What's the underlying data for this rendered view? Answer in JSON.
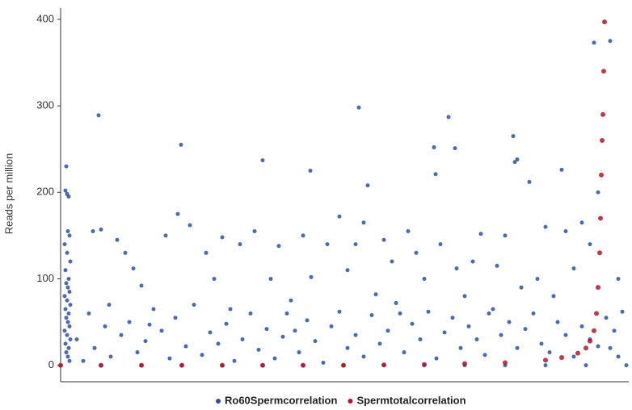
{
  "chart_data": {
    "type": "scatter",
    "y_label": "Reads per million",
    "xlim": [
      0,
      703
    ],
    "ylim": [
      -19,
      413
    ],
    "yticks": [
      0,
      100,
      200,
      300,
      400
    ],
    "grid": false,
    "legend": "bottom",
    "series": [
      {
        "name": "Ro60Spermcorrelation",
        "color": "#2f4f9e",
        "x": [
          6,
          8,
          10,
          7,
          9,
          11,
          5,
          8,
          12,
          6,
          10,
          7,
          9,
          11,
          5,
          8,
          12,
          6,
          10,
          7,
          9,
          11,
          5,
          8,
          12,
          6,
          10,
          7,
          9,
          11,
          47,
          149,
          250,
          309,
          369,
          380,
          480,
          462,
          464,
          488,
          560,
          562,
          565,
          580,
          620,
          660,
          680,
          40,
          50,
          60,
          70,
          80,
          90,
          100,
          110,
          130,
          145,
          160,
          180,
          190,
          200,
          210,
          222,
          240,
          260,
          270,
          280,
          290,
          300,
          310,
          330,
          345,
          355,
          365,
          375,
          390,
          400,
          410,
          420,
          430,
          440,
          450,
          470,
          490,
          500,
          510,
          520,
          530,
          540,
          550,
          570,
          590,
          600,
          610,
          625,
          635,
          645,
          655,
          665,
          690,
          695,
          20,
          28,
          35,
          42,
          55,
          62,
          75,
          85,
          95,
          105,
          115,
          125,
          135,
          142,
          155,
          165,
          175,
          185,
          195,
          205,
          215,
          225,
          235,
          245,
          255,
          265,
          275,
          285,
          295,
          305,
          315,
          325,
          335,
          345,
          355,
          365,
          375,
          385,
          395,
          405,
          415,
          425,
          435,
          445,
          455,
          465,
          475,
          485,
          495,
          505,
          515,
          525,
          535,
          545,
          555,
          565,
          575,
          585,
          595,
          605,
          615,
          625,
          635,
          645,
          655,
          665,
          675,
          680,
          685,
          690,
          0,
          50,
          100,
          150,
          200,
          250,
          300,
          350,
          400,
          450,
          500,
          550,
          600,
          650,
          700
        ],
        "values": [
          202,
          198,
          195,
          230,
          155,
          150,
          140,
          130,
          120,
          110,
          100,
          95,
          90,
          85,
          80,
          75,
          70,
          65,
          60,
          55,
          50,
          45,
          40,
          35,
          30,
          25,
          20,
          15,
          10,
          5,
          289,
          255,
          237,
          225,
          298,
          208,
          287,
          252,
          221,
          251,
          265,
          235,
          238,
          212,
          226,
          373,
          375,
          155,
          157,
          70,
          145,
          130,
          112,
          92,
          47,
          150,
          175,
          162,
          130,
          100,
          148,
          65,
          140,
          155,
          100,
          138,
          60,
          40,
          150,
          102,
          140,
          172,
          110,
          140,
          165,
          82,
          145,
          120,
          60,
          155,
          130,
          100,
          140,
          112,
          80,
          120,
          152,
          60,
          115,
          150,
          90,
          100,
          160,
          80,
          155,
          112,
          165,
          140,
          200,
          100,
          62,
          30,
          5,
          60,
          20,
          45,
          10,
          35,
          50,
          15,
          28,
          65,
          40,
          8,
          55,
          22,
          70,
          12,
          38,
          25,
          48,
          5,
          30,
          60,
          18,
          42,
          8,
          33,
          75,
          15,
          52,
          28,
          3,
          45,
          62,
          20,
          35,
          10,
          58,
          25,
          40,
          72,
          15,
          48,
          30,
          62,
          8,
          38,
          55,
          20,
          45,
          30,
          12,
          65,
          35,
          50,
          20,
          42,
          60,
          25,
          15,
          50,
          35,
          10,
          45,
          30,
          22,
          55,
          20,
          40,
          10,
          0,
          0,
          0,
          0,
          0,
          0,
          0,
          0,
          0,
          0,
          0,
          0,
          0,
          0,
          0
        ]
      },
      {
        "name": "Spermtotalcorrelation",
        "color": "#b2182b",
        "x": [
          0,
          50,
          100,
          150,
          200,
          250,
          300,
          350,
          400,
          450,
          500,
          550,
          600,
          620,
          640,
          650,
          655,
          660,
          663,
          665,
          667,
          668,
          669,
          670,
          671,
          672,
          673
        ],
        "values": [
          0,
          0,
          0,
          0,
          0,
          0,
          0,
          0,
          0.5,
          1,
          2,
          3,
          6,
          9,
          14,
          20,
          28,
          40,
          60,
          90,
          130,
          170,
          220,
          260,
          290,
          340,
          397
        ]
      }
    ]
  }
}
